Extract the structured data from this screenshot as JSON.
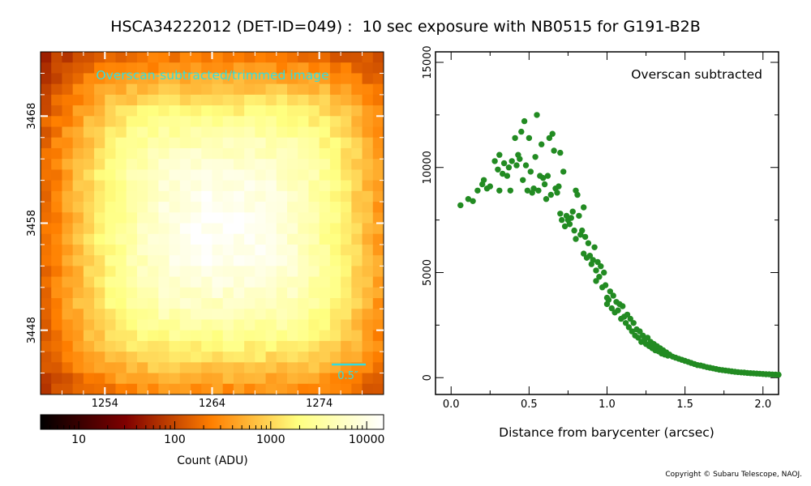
{
  "title": "HSCA34222012 (DET-ID=049) :  10 sec exposure with NB0515 for G191-B2B",
  "copyright": "Copyright © Subaru Telescope, NAOJ.",
  "colors": {
    "scatter": "#228b22",
    "annotation": "#33dddd",
    "axes": "#000000"
  },
  "chart_data": [
    {
      "type": "heatmap",
      "annotation": "Overscan-subtracted/trimmed image",
      "scale_bar_label": "0.5″",
      "x_ticks": [
        "1254",
        "1264",
        "1274"
      ],
      "y_ticks": [
        "3468",
        "3458",
        "3448"
      ],
      "xlim": [
        1248,
        1280
      ],
      "ylim": [
        3442,
        3474
      ],
      "colorbar": {
        "label": "Count (ADU)",
        "scale": "log",
        "range": [
          4,
          15000
        ],
        "ticks": [
          "10",
          "100",
          "1000",
          "10000"
        ],
        "colormap": "afmhot"
      },
      "grid": false
    },
    {
      "type": "scatter",
      "annotation": "Overscan subtracted",
      "xlabel": "Distance from barycenter (arcsec)",
      "ylabel": "",
      "xlim": [
        -0.1,
        2.1
      ],
      "ylim": [
        -800,
        15500
      ],
      "x_ticks": [
        "0.0",
        "0.5",
        "1.0",
        "1.5",
        "2.0"
      ],
      "y_ticks": [
        "0",
        "5000",
        "10000",
        "15000"
      ],
      "grid": false,
      "points": [
        [
          0.06,
          8200
        ],
        [
          0.11,
          8500
        ],
        [
          0.14,
          8400
        ],
        [
          0.17,
          8900
        ],
        [
          0.2,
          9200
        ],
        [
          0.21,
          9400
        ],
        [
          0.23,
          9000
        ],
        [
          0.25,
          9100
        ],
        [
          0.28,
          10300
        ],
        [
          0.3,
          9900
        ],
        [
          0.31,
          10600
        ],
        [
          0.31,
          8900
        ],
        [
          0.33,
          9700
        ],
        [
          0.34,
          10200
        ],
        [
          0.36,
          9600
        ],
        [
          0.37,
          10000
        ],
        [
          0.38,
          8900
        ],
        [
          0.39,
          10300
        ],
        [
          0.41,
          11400
        ],
        [
          0.42,
          10100
        ],
        [
          0.43,
          10600
        ],
        [
          0.44,
          10400
        ],
        [
          0.45,
          11700
        ],
        [
          0.46,
          9400
        ],
        [
          0.47,
          12200
        ],
        [
          0.48,
          10100
        ],
        [
          0.49,
          8900
        ],
        [
          0.5,
          11400
        ],
        [
          0.51,
          9800
        ],
        [
          0.52,
          8800
        ],
        [
          0.53,
          9000
        ],
        [
          0.54,
          10500
        ],
        [
          0.55,
          12500
        ],
        [
          0.56,
          8900
        ],
        [
          0.57,
          9600
        ],
        [
          0.58,
          11100
        ],
        [
          0.59,
          9500
        ],
        [
          0.6,
          9200
        ],
        [
          0.61,
          8500
        ],
        [
          0.62,
          9600
        ],
        [
          0.63,
          11400
        ],
        [
          0.64,
          8700
        ],
        [
          0.65,
          11600
        ],
        [
          0.66,
          10800
        ],
        [
          0.67,
          9000
        ],
        [
          0.68,
          8800
        ],
        [
          0.69,
          9100
        ],
        [
          0.7,
          10700
        ],
        [
          0.7,
          7800
        ],
        [
          0.71,
          7500
        ],
        [
          0.72,
          9800
        ],
        [
          0.73,
          7200
        ],
        [
          0.74,
          7700
        ],
        [
          0.75,
          7500
        ],
        [
          0.76,
          7300
        ],
        [
          0.77,
          7600
        ],
        [
          0.78,
          7900
        ],
        [
          0.79,
          7000
        ],
        [
          0.8,
          8900
        ],
        [
          0.8,
          6600
        ],
        [
          0.81,
          8700
        ],
        [
          0.82,
          7700
        ],
        [
          0.83,
          6800
        ],
        [
          0.84,
          7000
        ],
        [
          0.85,
          8100
        ],
        [
          0.85,
          5900
        ],
        [
          0.86,
          6700
        ],
        [
          0.87,
          5700
        ],
        [
          0.88,
          6400
        ],
        [
          0.89,
          5800
        ],
        [
          0.9,
          5400
        ],
        [
          0.91,
          5600
        ],
        [
          0.92,
          6200
        ],
        [
          0.93,
          5100
        ],
        [
          0.93,
          4600
        ],
        [
          0.94,
          5500
        ],
        [
          0.95,
          4800
        ],
        [
          0.96,
          5300
        ],
        [
          0.97,
          4300
        ],
        [
          0.98,
          5000
        ],
        [
          0.99,
          4400
        ],
        [
          1.0,
          3800
        ],
        [
          1.0,
          3500
        ],
        [
          1.01,
          3700
        ],
        [
          1.02,
          4100
        ],
        [
          1.03,
          3300
        ],
        [
          1.04,
          3900
        ],
        [
          1.05,
          3100
        ],
        [
          1.06,
          3600
        ],
        [
          1.07,
          3200
        ],
        [
          1.08,
          3500
        ],
        [
          1.09,
          2800
        ],
        [
          1.1,
          3400
        ],
        [
          1.11,
          2900
        ],
        [
          1.12,
          2600
        ],
        [
          1.13,
          3000
        ],
        [
          1.14,
          2400
        ],
        [
          1.15,
          2800
        ],
        [
          1.16,
          2200
        ],
        [
          1.17,
          2600
        ],
        [
          1.18,
          2000
        ],
        [
          1.19,
          2300
        ],
        [
          1.2,
          1900
        ],
        [
          1.21,
          2200
        ],
        [
          1.22,
          1700
        ],
        [
          1.23,
          2000
        ],
        [
          1.24,
          1800
        ],
        [
          1.25,
          1600
        ],
        [
          1.26,
          1900
        ],
        [
          1.27,
          1500
        ],
        [
          1.28,
          1700
        ],
        [
          1.29,
          1400
        ],
        [
          1.3,
          1600
        ],
        [
          1.31,
          1300
        ],
        [
          1.32,
          1500
        ],
        [
          1.33,
          1250
        ],
        [
          1.34,
          1400
        ],
        [
          1.35,
          1150
        ],
        [
          1.36,
          1300
        ],
        [
          1.37,
          1100
        ],
        [
          1.38,
          1200
        ],
        [
          1.39,
          1050
        ],
        [
          1.4,
          1100
        ],
        [
          1.42,
          1000
        ],
        [
          1.44,
          950
        ],
        [
          1.46,
          900
        ],
        [
          1.48,
          850
        ],
        [
          1.5,
          800
        ],
        [
          1.52,
          750
        ],
        [
          1.54,
          700
        ],
        [
          1.56,
          650
        ],
        [
          1.58,
          600
        ],
        [
          1.6,
          580
        ],
        [
          1.62,
          540
        ],
        [
          1.64,
          500
        ],
        [
          1.66,
          470
        ],
        [
          1.68,
          440
        ],
        [
          1.7,
          410
        ],
        [
          1.72,
          380
        ],
        [
          1.74,
          360
        ],
        [
          1.76,
          340
        ],
        [
          1.78,
          320
        ],
        [
          1.8,
          300
        ],
        [
          1.82,
          280
        ],
        [
          1.84,
          265
        ],
        [
          1.86,
          250
        ],
        [
          1.88,
          240
        ],
        [
          1.9,
          225
        ],
        [
          1.92,
          215
        ],
        [
          1.94,
          205
        ],
        [
          1.96,
          195
        ],
        [
          1.98,
          185
        ],
        [
          2.0,
          175
        ],
        [
          2.02,
          165
        ],
        [
          2.04,
          160
        ],
        [
          2.06,
          150
        ],
        [
          2.08,
          145
        ],
        [
          2.1,
          140
        ]
      ]
    }
  ]
}
